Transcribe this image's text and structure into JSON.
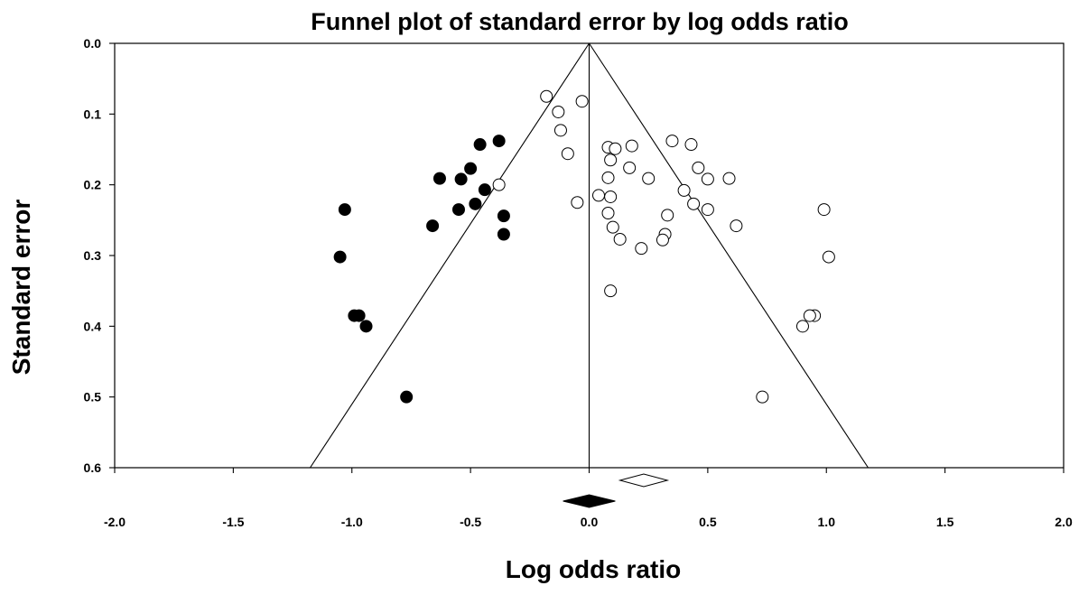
{
  "chart_data": {
    "type": "scatter",
    "title": "Funnel plot of standard error by log odds ratio",
    "xlabel": "Log odds ratio",
    "ylabel": "Standard error",
    "xlim": [
      -2.0,
      2.0
    ],
    "ylim": [
      0.0,
      0.6
    ],
    "y_inverted": true,
    "grid": false,
    "x_ticks": [
      "-2.0",
      "-1.5",
      "-1.0",
      "-0.5",
      "0.0",
      "0.5",
      "1.0",
      "1.5",
      "2.0"
    ],
    "y_ticks": [
      "0.0",
      "0.1",
      "0.2",
      "0.3",
      "0.4",
      "0.5",
      "0.6"
    ],
    "funnel": {
      "apex": [
        0.0,
        0.0
      ],
      "base_left": [
        -1.176,
        0.6
      ],
      "base_right": [
        1.176,
        0.6
      ]
    },
    "series": [
      {
        "marker": "filled-circle",
        "points": [
          [
            -0.38,
            0.138
          ],
          [
            -0.46,
            0.143
          ],
          [
            -0.5,
            0.177
          ],
          [
            -0.54,
            0.192
          ],
          [
            -0.63,
            0.191
          ],
          [
            -0.44,
            0.207
          ],
          [
            -0.48,
            0.227
          ],
          [
            -0.55,
            0.235
          ],
          [
            -0.66,
            0.258
          ],
          [
            -1.03,
            0.235
          ],
          [
            -0.36,
            0.244
          ],
          [
            -0.36,
            0.27
          ],
          [
            -1.05,
            0.302
          ],
          [
            -0.99,
            0.385
          ],
          [
            -0.97,
            0.385
          ],
          [
            -0.94,
            0.4
          ],
          [
            -0.77,
            0.5
          ]
        ]
      },
      {
        "marker": "open-circle",
        "points": [
          [
            -0.18,
            0.075
          ],
          [
            -0.03,
            0.082
          ],
          [
            -0.13,
            0.097
          ],
          [
            -0.12,
            0.123
          ],
          [
            -0.09,
            0.156
          ],
          [
            -0.38,
            0.2
          ],
          [
            -0.05,
            0.225
          ],
          [
            0.04,
            0.215
          ],
          [
            0.09,
            0.217
          ],
          [
            0.08,
            0.147
          ],
          [
            0.11,
            0.149
          ],
          [
            0.18,
            0.145
          ],
          [
            0.09,
            0.165
          ],
          [
            0.17,
            0.176
          ],
          [
            0.08,
            0.19
          ],
          [
            0.25,
            0.191
          ],
          [
            0.08,
            0.24
          ],
          [
            0.1,
            0.26
          ],
          [
            0.13,
            0.277
          ],
          [
            0.22,
            0.29
          ],
          [
            0.09,
            0.35
          ],
          [
            0.33,
            0.243
          ],
          [
            0.32,
            0.27
          ],
          [
            0.31,
            0.278
          ],
          [
            0.35,
            0.138
          ],
          [
            0.43,
            0.143
          ],
          [
            0.46,
            0.176
          ],
          [
            0.5,
            0.192
          ],
          [
            0.59,
            0.191
          ],
          [
            0.4,
            0.208
          ],
          [
            0.44,
            0.227
          ],
          [
            0.5,
            0.235
          ],
          [
            0.62,
            0.258
          ],
          [
            0.99,
            0.235
          ],
          [
            1.01,
            0.302
          ],
          [
            0.95,
            0.385
          ],
          [
            0.93,
            0.385
          ],
          [
            0.9,
            0.4
          ],
          [
            0.73,
            0.5
          ]
        ]
      }
    ],
    "summary_diamonds": [
      {
        "fill": "#ffffff",
        "center": 0.23,
        "lower": 0.13,
        "upper": 0.33
      },
      {
        "fill": "#000000",
        "center": 0.0,
        "lower": -0.11,
        "upper": 0.11
      }
    ],
    "colors": {
      "axis": "#000000",
      "filled": "#000000",
      "open": "#ffffff"
    }
  }
}
